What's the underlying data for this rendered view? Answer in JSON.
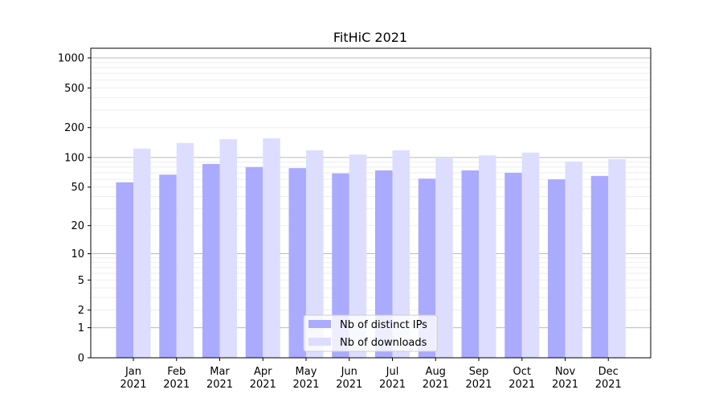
{
  "chart_data": {
    "type": "bar",
    "title": "FitHiC 2021",
    "xlabel": "",
    "ylabel": "",
    "yscale": "symlog (log10(v+1))",
    "ylim": [
      0,
      1200
    ],
    "yticks": [
      0,
      1,
      2,
      5,
      10,
      20,
      50,
      100,
      200,
      500,
      1000
    ],
    "ytick_labels": [
      "0",
      "1",
      "2",
      "5",
      "10",
      "20",
      "50",
      "100",
      "200",
      "500",
      "1000"
    ],
    "grid": true,
    "legend_position": "lower center",
    "categories": [
      "Jan\n2021",
      "Feb\n2021",
      "Mar\n2021",
      "Apr\n2021",
      "May\n2021",
      "Jun\n2021",
      "Jul\n2021",
      "Aug\n2021",
      "Sep\n2021",
      "Oct\n2021",
      "Nov\n2021",
      "Dec\n2021"
    ],
    "category_months": [
      "Jan",
      "Feb",
      "Mar",
      "Apr",
      "May",
      "Jun",
      "Jul",
      "Aug",
      "Sep",
      "Oct",
      "Nov",
      "Dec"
    ],
    "category_year": "2021",
    "series": [
      {
        "name": "Nb of distinct IPs",
        "color": "#aaaaff",
        "values": [
          56,
          67,
          86,
          80,
          78,
          69,
          74,
          61,
          74,
          70,
          60,
          65
        ]
      },
      {
        "name": "Nb of downloads",
        "color": "#ddddff",
        "values": [
          123,
          140,
          153,
          156,
          118,
          107,
          118,
          98,
          105,
          112,
          91,
          96
        ]
      }
    ]
  }
}
